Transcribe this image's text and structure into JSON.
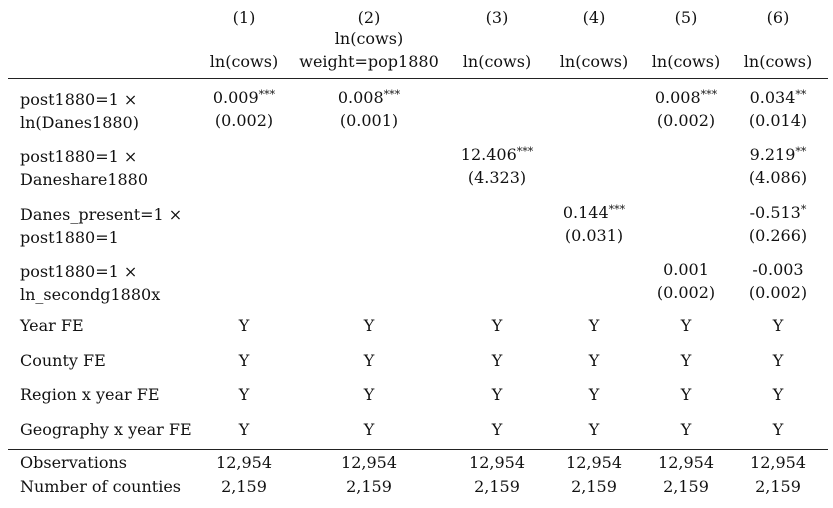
{
  "columns": [
    {
      "number": "(1)",
      "dep_line1": "",
      "dep_line2": "ln(cows)"
    },
    {
      "number": "(2)",
      "dep_line1": "ln(cows)",
      "dep_line2": "weight=pop1880"
    },
    {
      "number": "(3)",
      "dep_line1": "",
      "dep_line2": "ln(cows)"
    },
    {
      "number": "(4)",
      "dep_line1": "",
      "dep_line2": "ln(cows)"
    },
    {
      "number": "(5)",
      "dep_line1": "",
      "dep_line2": "ln(cows)"
    },
    {
      "number": "(6)",
      "dep_line1": "",
      "dep_line2": "ln(cows)"
    }
  ],
  "coef_rows": [
    {
      "label1": "post1880=1 ×",
      "label2": "ln(Danes1880)",
      "cells": [
        {
          "coef": "0.009",
          "stars": "***",
          "se": "(0.002)"
        },
        {
          "coef": "0.008",
          "stars": "***",
          "se": "(0.001)"
        },
        {
          "coef": "",
          "stars": "",
          "se": ""
        },
        {
          "coef": "",
          "stars": "",
          "se": ""
        },
        {
          "coef": "0.008",
          "stars": "***",
          "se": "(0.002)"
        },
        {
          "coef": "0.034",
          "stars": "**",
          "se": "(0.014)"
        }
      ]
    },
    {
      "label1": "post1880=1 ×",
      "label2": "Daneshare1880",
      "cells": [
        {
          "coef": "",
          "stars": "",
          "se": ""
        },
        {
          "coef": "",
          "stars": "",
          "se": ""
        },
        {
          "coef": "12.406",
          "stars": "***",
          "se": "(4.323)"
        },
        {
          "coef": "",
          "stars": "",
          "se": ""
        },
        {
          "coef": "",
          "stars": "",
          "se": ""
        },
        {
          "coef": "9.219",
          "stars": "**",
          "se": "(4.086)"
        }
      ]
    },
    {
      "label1": "Danes_present=1 ×",
      "label2": "post1880=1",
      "cells": [
        {
          "coef": "",
          "stars": "",
          "se": ""
        },
        {
          "coef": "",
          "stars": "",
          "se": ""
        },
        {
          "coef": "",
          "stars": "",
          "se": ""
        },
        {
          "coef": "0.144",
          "stars": "***",
          "se": "(0.031)"
        },
        {
          "coef": "",
          "stars": "",
          "se": ""
        },
        {
          "coef": "-0.513",
          "stars": "*",
          "se": "(0.266)"
        }
      ]
    },
    {
      "label1": "post1880=1 ×",
      "label2": "ln_secondg1880x",
      "cells": [
        {
          "coef": "",
          "stars": "",
          "se": ""
        },
        {
          "coef": "",
          "stars": "",
          "se": ""
        },
        {
          "coef": "",
          "stars": "",
          "se": ""
        },
        {
          "coef": "",
          "stars": "",
          "se": ""
        },
        {
          "coef": "0.001",
          "stars": "",
          "se": "(0.002)"
        },
        {
          "coef": "-0.003",
          "stars": "",
          "se": "(0.002)"
        }
      ]
    }
  ],
  "fe_rows": [
    {
      "label": "Year FE",
      "values": [
        "Y",
        "Y",
        "Y",
        "Y",
        "Y",
        "Y"
      ]
    },
    {
      "label": "County FE",
      "values": [
        "Y",
        "Y",
        "Y",
        "Y",
        "Y",
        "Y"
      ]
    },
    {
      "label": "Region x year FE",
      "values": [
        "Y",
        "Y",
        "Y",
        "Y",
        "Y",
        "Y"
      ]
    },
    {
      "label": "Geography x year FE",
      "values": [
        "Y",
        "Y",
        "Y",
        "Y",
        "Y",
        "Y"
      ]
    }
  ],
  "stat_rows": [
    {
      "label": "Observations",
      "values": [
        "12,954",
        "12,954",
        "12,954",
        "12,954",
        "12,954",
        "12,954"
      ]
    },
    {
      "label": "Number of counties",
      "values": [
        "2,159",
        "2,159",
        "2,159",
        "2,159",
        "2,159",
        "2,159"
      ]
    }
  ]
}
